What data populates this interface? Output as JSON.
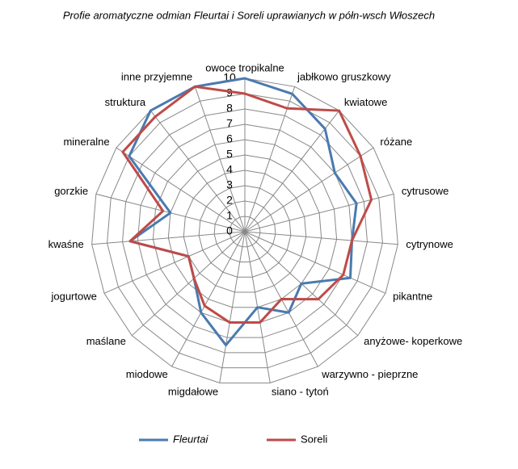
{
  "chart_data": {
    "type": "radar",
    "title": "Profie aromatyczne odmian Fleurtai i Soreli  uprawianych w półn-wsch  Włoszech",
    "categories": [
      "owoce tropikalne",
      "jabłkowo gruszkowy",
      "kwiatowe",
      "różane",
      "cytrusowe",
      "cytrynowe",
      "pikantne",
      "anyżowe- koperkowe",
      "warzywno - pieprzne",
      "siano - tytoń",
      "migdałowe",
      "miodowe",
      "maślane",
      "jogurtowe",
      "kwaśne",
      "gorzkie",
      "mineralne",
      "struktura",
      "inne przyjemne"
    ],
    "series": [
      {
        "name": "Fleurtai",
        "color": "#4a7ab0",
        "values": [
          10,
          9.5,
          8.5,
          7,
          7.5,
          7,
          7.5,
          5,
          6,
          5,
          7.5,
          6,
          4.5,
          4,
          7.5,
          5,
          9,
          10,
          10
        ]
      },
      {
        "name": "Soreli",
        "color": "#be4b48",
        "values": [
          9,
          8.5,
          10,
          9,
          8.5,
          7,
          7,
          6.5,
          5,
          6,
          6,
          5.5,
          4.5,
          4,
          7.5,
          5.5,
          9.5,
          9.5,
          10
        ]
      }
    ],
    "ylim": [
      0,
      10
    ],
    "yticks": [
      0,
      1,
      2,
      3,
      4,
      5,
      6,
      7,
      8,
      9,
      10
    ],
    "grid": true
  }
}
